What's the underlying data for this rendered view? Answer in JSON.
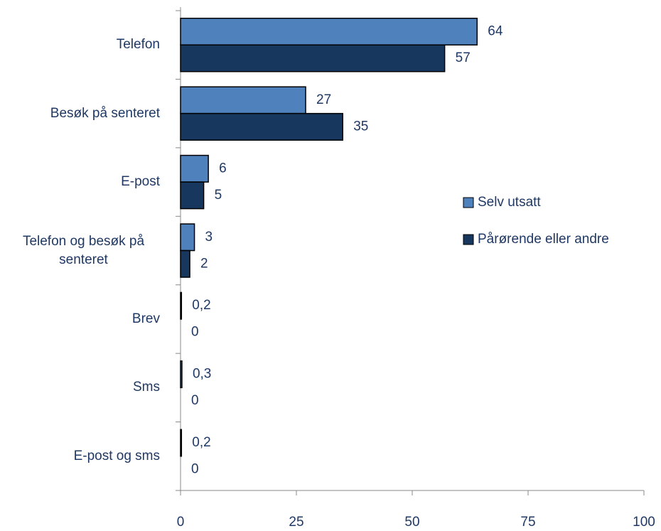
{
  "chart_data": {
    "type": "bar",
    "orientation": "horizontal",
    "categories": [
      "Telefon",
      "Besøk på senteret",
      "E-post",
      "Telefon og besøk på senteret",
      "Brev",
      "Sms",
      "E-post og sms"
    ],
    "series": [
      {
        "name": "Selv utsatt",
        "color": "#4f81bd",
        "values": [
          64,
          27,
          6,
          3,
          0.2,
          0.3,
          0.2
        ],
        "value_labels": [
          "64",
          "27",
          "6",
          "3",
          "0,2",
          "0,3",
          "0,2"
        ]
      },
      {
        "name": "Pårørende eller andre",
        "color": "#17375e",
        "values": [
          57,
          35,
          5,
          2,
          0,
          0,
          0
        ],
        "value_labels": [
          "57",
          "35",
          "5",
          "2",
          "0",
          "0",
          "0"
        ]
      }
    ],
    "xlim": [
      0,
      100
    ],
    "xticks": [
      0,
      25,
      50,
      75,
      100
    ],
    "grid": false,
    "legend": "right"
  }
}
